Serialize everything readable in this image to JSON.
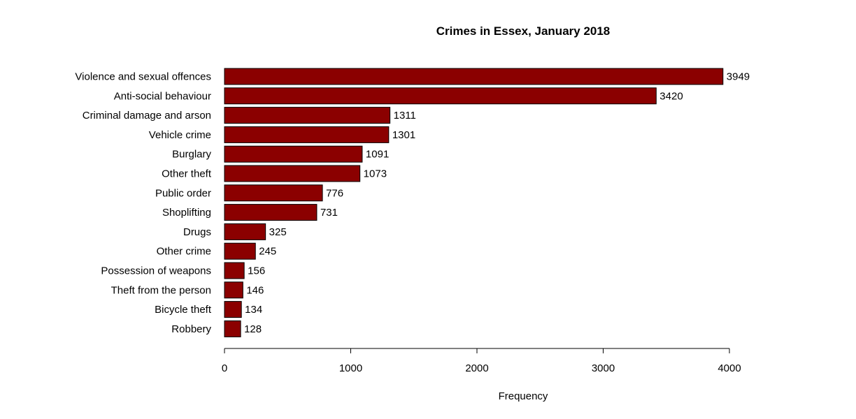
{
  "colors": {
    "bar_fill": "#8b0000",
    "bar_stroke": "#000000"
  },
  "chart_data": {
    "type": "bar",
    "orientation": "horizontal",
    "title": "Crimes in Essex, January 2018",
    "xlabel": "Frequency",
    "ylabel": "",
    "xlim": [
      0,
      4000
    ],
    "x_ticks": [
      0,
      1000,
      2000,
      3000,
      4000
    ],
    "grid": false,
    "categories": [
      "Violence and sexual offences",
      "Anti-social behaviour",
      "Criminal damage and arson",
      "Vehicle crime",
      "Burglary",
      "Other theft",
      "Public order",
      "Shoplifting",
      "Drugs",
      "Other crime",
      "Possession of weapons",
      "Theft from the person",
      "Bicycle theft",
      "Robbery"
    ],
    "values": [
      3949,
      3420,
      1311,
      1301,
      1091,
      1073,
      776,
      731,
      325,
      245,
      156,
      146,
      134,
      128
    ]
  }
}
